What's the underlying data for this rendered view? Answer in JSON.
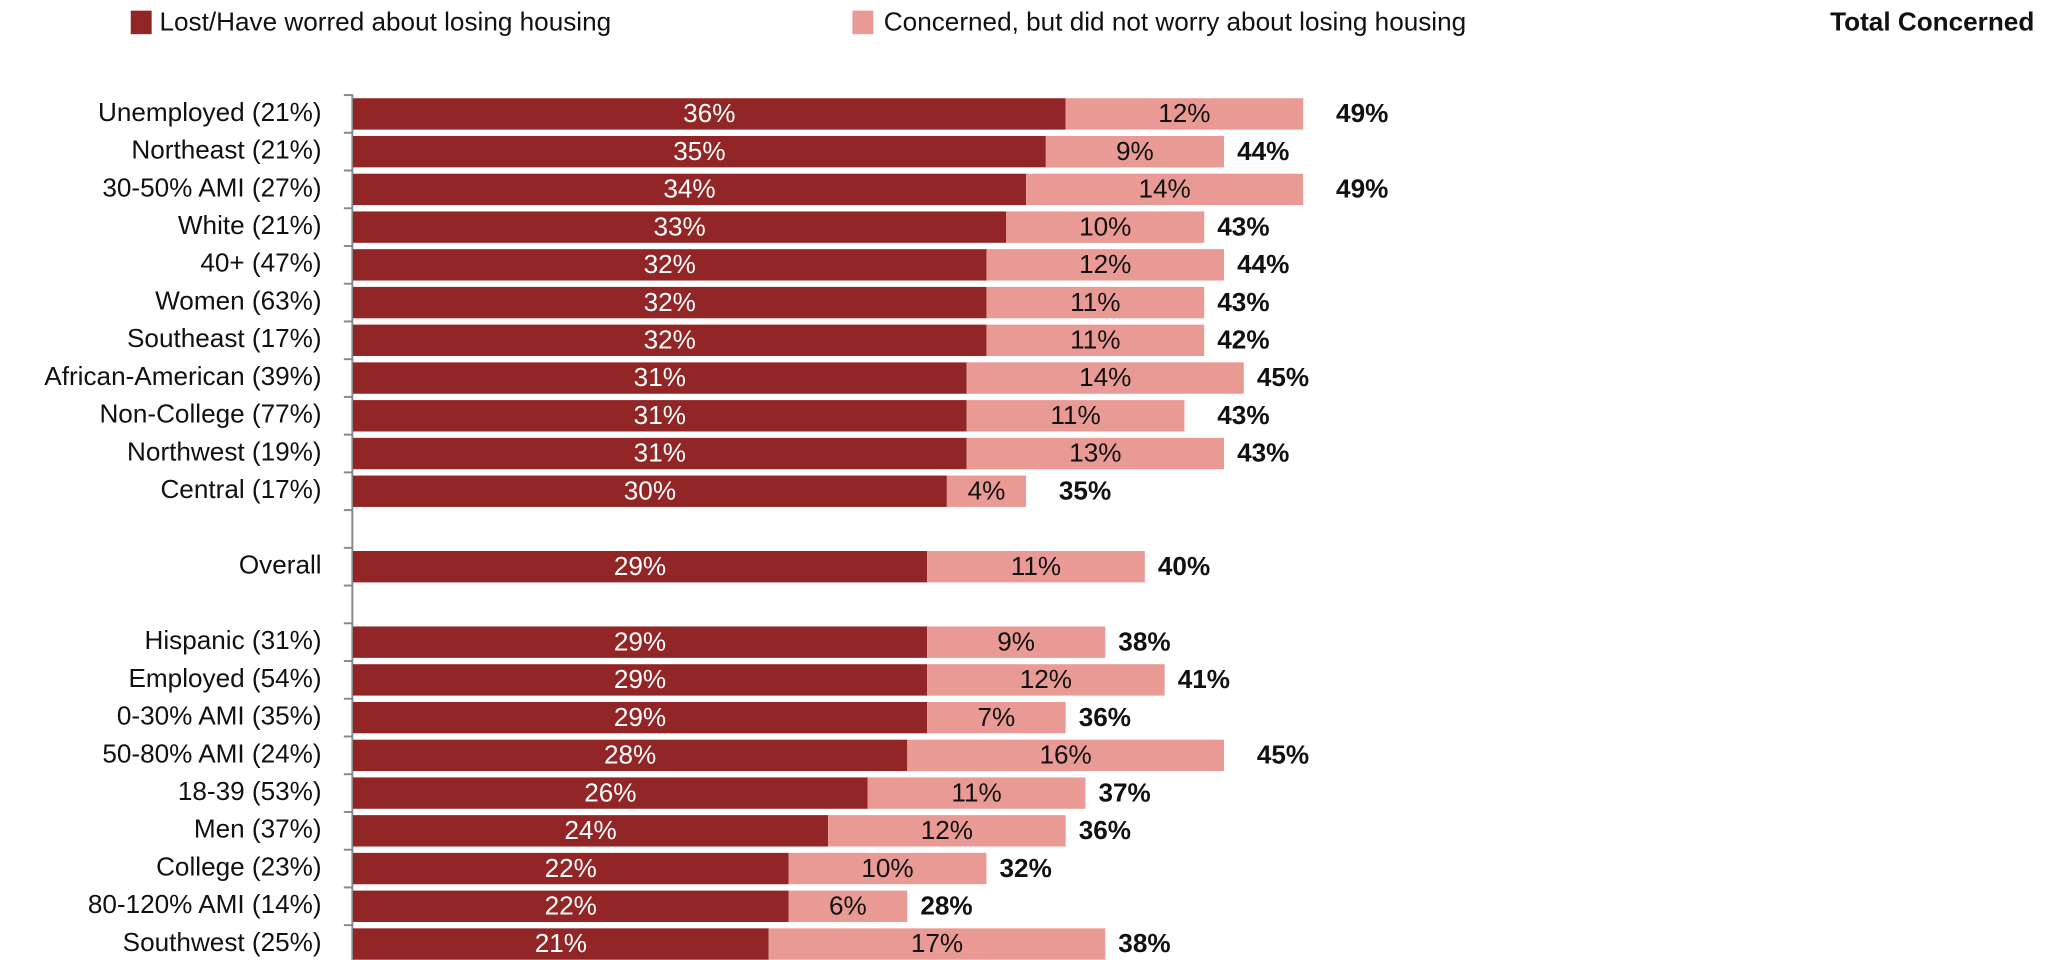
{
  "chart_data": {
    "type": "stacked-bar-horizontal",
    "categories": [
      "Unemployed (21%)",
      "Northeast (21%)",
      "30-50% AMI (27%)",
      "White (21%)",
      "40+ (47%)",
      "Women (63%)",
      "Southeast (17%)",
      "African-American (39%)",
      "Non-College (77%)",
      "Northwest (19%)",
      "Central (17%)",
      null,
      "Overall",
      null,
      "Hispanic (31%)",
      "Employed (54%)",
      "0-30% AMI (35%)",
      "50-80% AMI (24%)",
      "18-39 (53%)",
      "Men (37%)",
      "College (23%)",
      "80-120% AMI (14%)",
      "Southwest (25%)"
    ],
    "series": [
      {
        "name": "Lost/Have worred about losing housing",
        "color": "#922525",
        "values": [
          36,
          35,
          34,
          33,
          32,
          32,
          32,
          31,
          31,
          31,
          30,
          null,
          29,
          null,
          29,
          29,
          29,
          28,
          26,
          24,
          22,
          22,
          21
        ],
        "value_labels": [
          "36%",
          "35%",
          "34%",
          "33%",
          "32%",
          "32%",
          "32%",
          "31%",
          "31%",
          "31%",
          "30%",
          null,
          "29%",
          null,
          "29%",
          "29%",
          "29%",
          "28%",
          "26%",
          "24%",
          "22%",
          "22%",
          "21%"
        ]
      },
      {
        "name": "Concerned, but did not worry about losing housing",
        "color": "#e99a95",
        "values": [
          12,
          9,
          14,
          10,
          12,
          11,
          11,
          14,
          11,
          13,
          4,
          null,
          11,
          null,
          9,
          12,
          7,
          16,
          11,
          12,
          10,
          6,
          17
        ],
        "value_labels": [
          "12%",
          "9%",
          "14%",
          "10%",
          "12%",
          "11%",
          "11%",
          "14%",
          "11%",
          "13%",
          "4%",
          null,
          "11%",
          null,
          "9%",
          "12%",
          "7%",
          "16%",
          "11%",
          "12%",
          "10%",
          "6%",
          "17%"
        ]
      }
    ],
    "totals": {
      "name": "Total Concerned",
      "values": [
        49,
        44,
        49,
        43,
        44,
        43,
        42,
        45,
        43,
        43,
        35,
        null,
        40,
        null,
        38,
        41,
        36,
        45,
        37,
        36,
        32,
        28,
        38
      ],
      "value_labels": [
        "49%",
        "44%",
        "49%",
        "43%",
        "44%",
        "43%",
        "42%",
        "45%",
        "43%",
        "43%",
        "35%",
        null,
        "40%",
        null,
        "38%",
        "41%",
        "36%",
        "45%",
        "37%",
        "36%",
        "32%",
        "28%",
        "38%"
      ]
    },
    "xlim": [
      0,
      85
    ]
  }
}
